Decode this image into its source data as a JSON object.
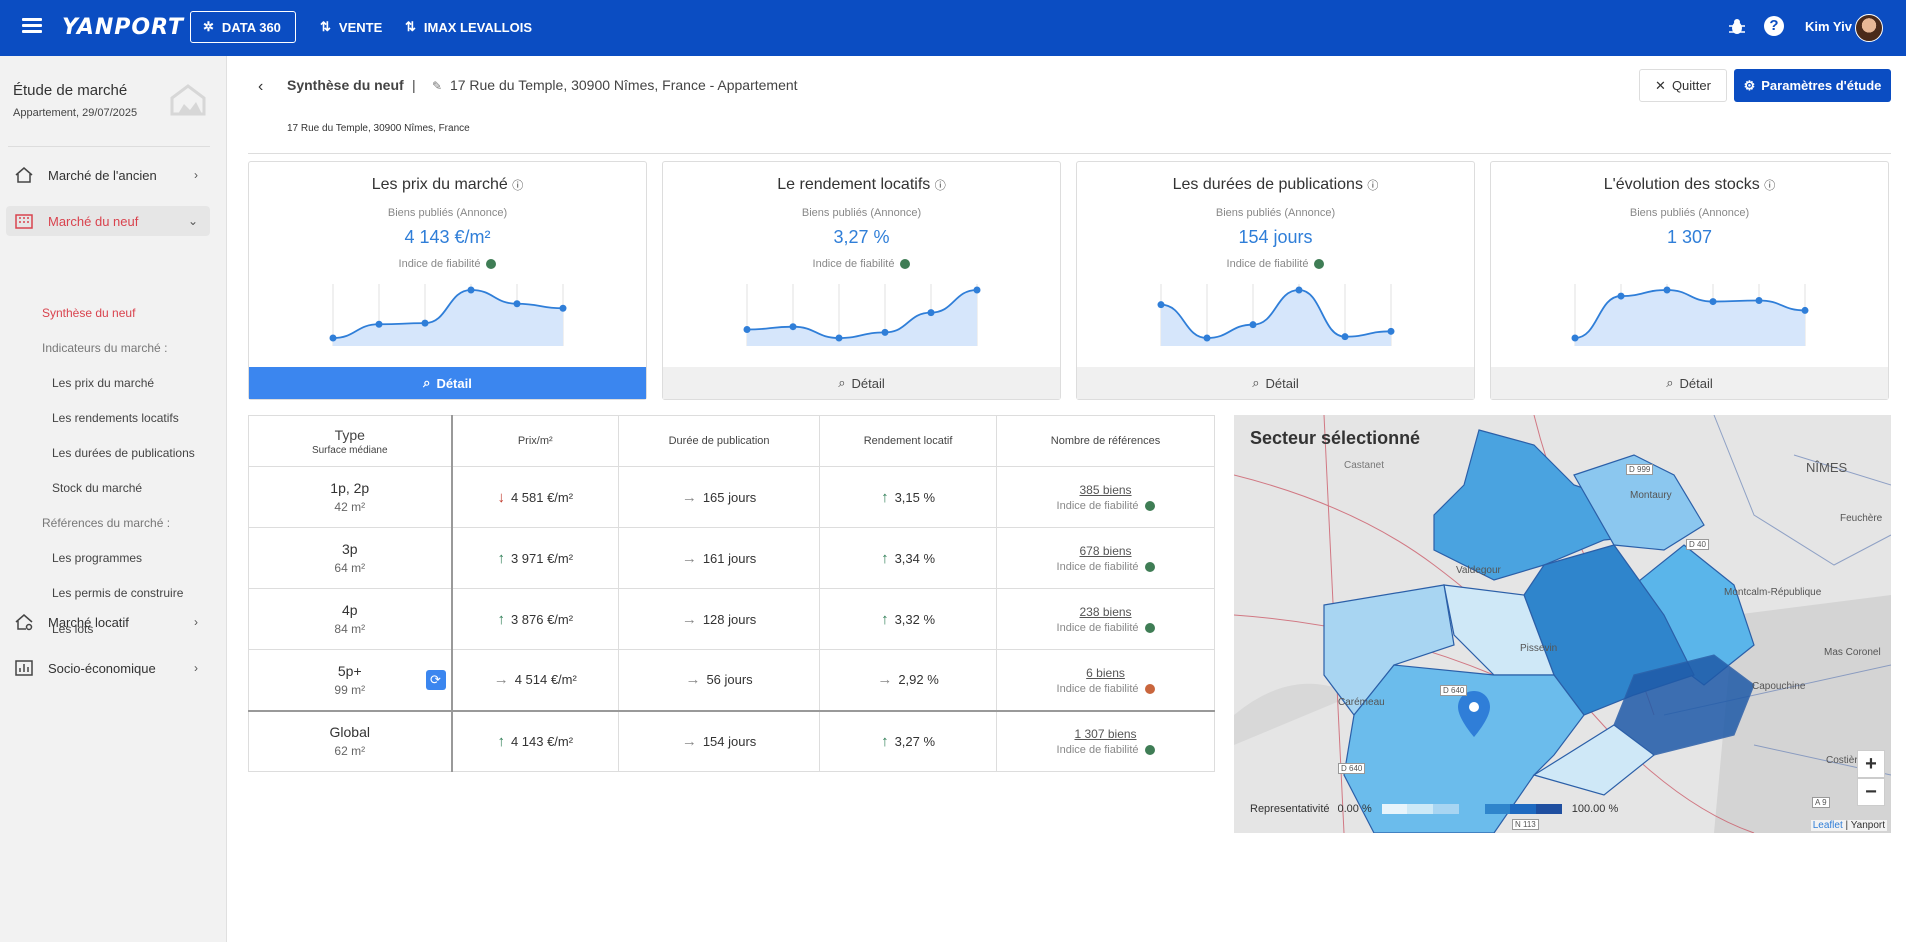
{
  "topbar": {
    "brand": "YANPORT",
    "nav": [
      "DATA 360",
      "VENTE",
      "IMAX LEVALLOIS"
    ],
    "user": "Kim Yiv"
  },
  "sidebar": {
    "title": "Étude de marché",
    "subtitle": "Appartement, 29/07/2025",
    "sections": [
      {
        "label": "Marché de l'ancien"
      },
      {
        "label": "Marché du neuf"
      },
      {
        "label": "Marché locatif"
      },
      {
        "label": "Socio-économique"
      }
    ],
    "sub": {
      "synthese": "Synthèse du neuf",
      "indicateurs": "Indicateurs du marché :",
      "prix": "Les prix du marché",
      "rendements": "Les rendements locatifs",
      "durees": "Les durées de publications",
      "stock": "Stock du marché",
      "references": "Références du marché :",
      "programmes": "Les programmes",
      "permis": "Les permis de construire",
      "lots": "Les lots"
    }
  },
  "header": {
    "crumb": "Synthèse du neuf",
    "separator": "|",
    "location": "17 Rue du Temple, 30900 Nîmes, France - Appartement",
    "address": "17 Rue du Temple, 30900 Nîmes, France",
    "quit": "Quitter",
    "params": "Paramètres d'étude"
  },
  "cards": [
    {
      "title": "Les prix du marché",
      "sub": "Biens publiés (Annonce)",
      "value": "4 143 €/m²",
      "fiab": "Indice de fiabilité",
      "detail": "Détail",
      "series": [
        4020,
        4080,
        4085,
        4230,
        4170,
        4150
      ]
    },
    {
      "title": "Le rendement locatifs",
      "sub": "Biens publiés (Annonce)",
      "value": "3,27 %",
      "fiab": "Indice de fiabilité",
      "detail": "Détail",
      "series": [
        3.15,
        3.16,
        3.12,
        3.14,
        3.21,
        3.29
      ]
    },
    {
      "title": "Les durées de publications",
      "sub": "Biens publiés (Annonce)",
      "value": "154 jours",
      "fiab": "Indice de fiabilité",
      "detail": "Détail",
      "series": [
        130,
        80,
        100,
        152,
        82,
        90
      ]
    },
    {
      "title": "L'évolution des stocks",
      "sub": "Biens publiés (Annonce)",
      "value": "1 307",
      "fiab": "",
      "detail": "Détail",
      "series": [
        1000,
        1380,
        1435,
        1330,
        1340,
        1250
      ]
    }
  ],
  "table": {
    "headers": {
      "type": "Type",
      "type_sub": "Surface médiane",
      "prix": "Prix/m²",
      "duree": "Durée de publication",
      "rendement": "Rendement locatif",
      "refs": "Nombre de références"
    },
    "rows": [
      {
        "type": "1p, 2p",
        "surface": "42 m²",
        "prix": "4 581 €/m²",
        "prix_trend": "down",
        "duree": "165 jours",
        "duree_trend": "flat",
        "rend": "3,15 %",
        "rend_trend": "up",
        "refs": "385 biens",
        "fiab": "Indice de fiabilité",
        "fiab_color": "green"
      },
      {
        "type": "3p",
        "surface": "64 m²",
        "prix": "3 971 €/m²",
        "prix_trend": "up",
        "duree": "161 jours",
        "duree_trend": "flat",
        "rend": "3,34 %",
        "rend_trend": "up",
        "refs": "678 biens",
        "fiab": "Indice de fiabilité",
        "fiab_color": "green"
      },
      {
        "type": "4p",
        "surface": "84 m²",
        "prix": "3 876 €/m²",
        "prix_trend": "up",
        "duree": "128 jours",
        "duree_trend": "flat",
        "rend": "3,32 %",
        "rend_trend": "up",
        "refs": "238 biens",
        "fiab": "Indice de fiabilité",
        "fiab_color": "green"
      },
      {
        "type": "5p+",
        "surface": "99 m²",
        "prix": "4 514 €/m²",
        "prix_trend": "flat",
        "duree": "56 jours",
        "duree_trend": "flat",
        "rend": "2,92 %",
        "rend_trend": "flat",
        "refs": "6 biens",
        "fiab": "Indice de fiabilité",
        "fiab_color": "orange"
      }
    ],
    "global": {
      "type": "Global",
      "surface": "62 m²",
      "prix": "4 143 €/m²",
      "duree": "154 jours",
      "rend": "3,27 %",
      "refs": "1 307 biens",
      "fiab": "Indice de fiabilité"
    }
  },
  "map": {
    "title": "Secteur sélectionné",
    "legend_label": "Representativité",
    "legend_min": "0.00 %",
    "legend_max": "100.00 %",
    "labels": {
      "nimes": "NÎMES",
      "castanet": "Castanet",
      "montaury": "Montaury",
      "valdegour": "Valdegour",
      "pissevin": "Pissevin",
      "montcalm": "Montcalm-République",
      "mascoronel": "Mas Coronel",
      "capouchine": "Capouchine",
      "caremeau": "Carémeau",
      "costieres": "Costières",
      "feuchere": "Feuchère",
      "d999": "D 999",
      "d640": "D 640",
      "d40": "D 40",
      "a9": "A 9",
      "n113": "N 113",
      "d640b": "D 640"
    },
    "zoom_in": "+",
    "zoom_out": "−",
    "leaflet": "Leaflet",
    "attribution": "| Yanport"
  }
}
